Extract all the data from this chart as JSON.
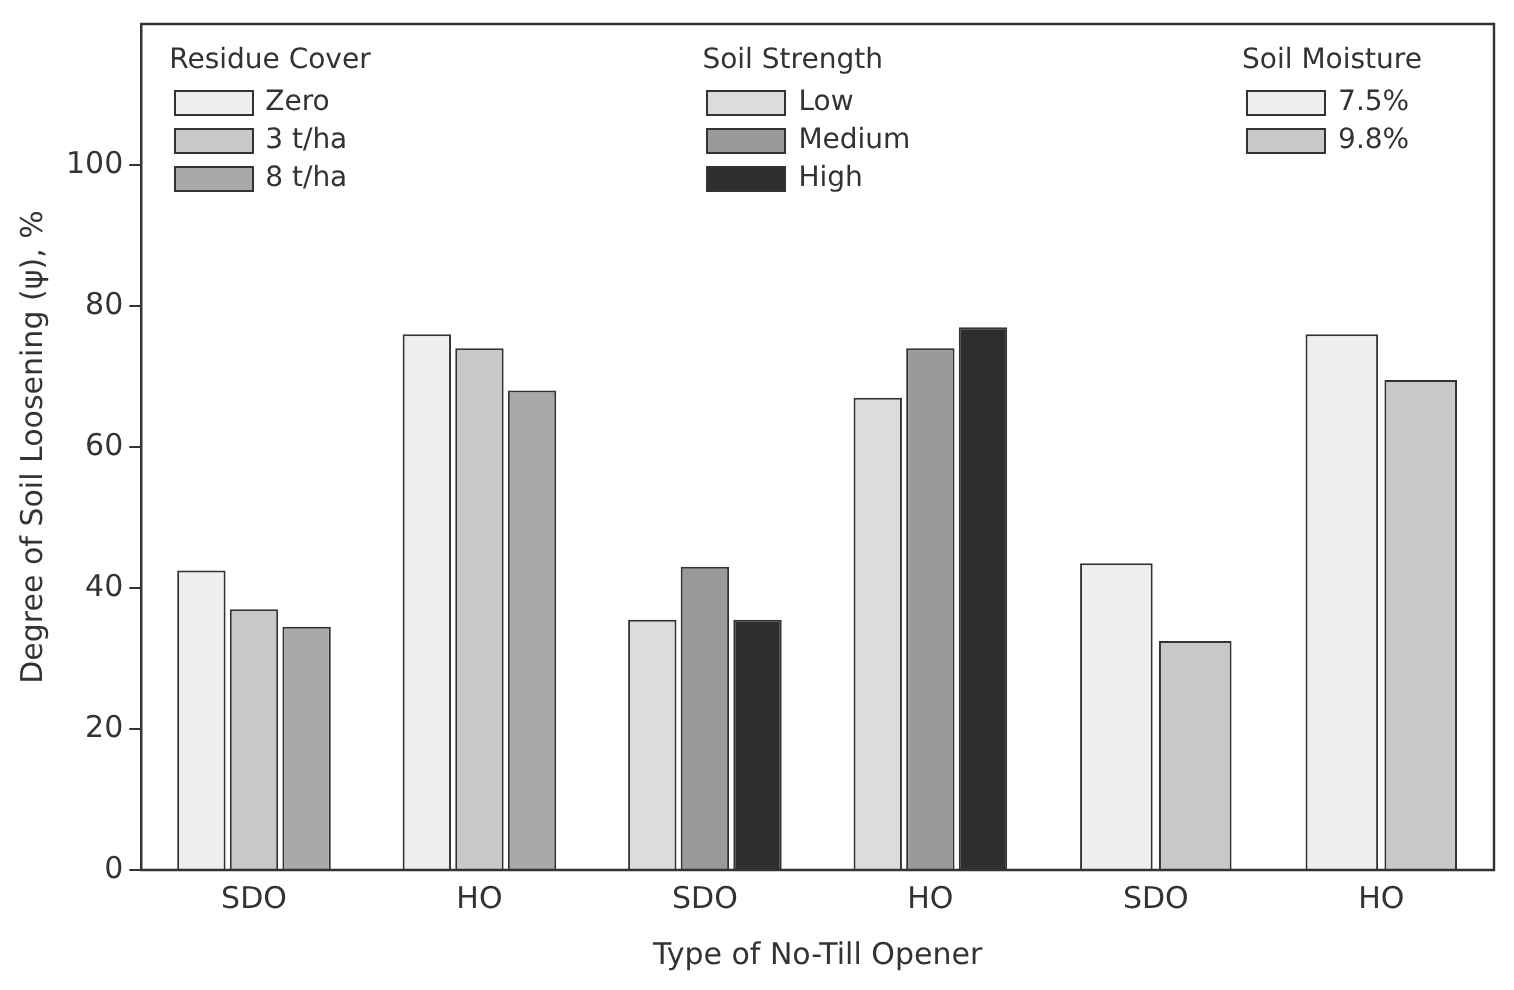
{
  "chart_data": {
    "type": "bar",
    "categories": [
      "SDO",
      "HO",
      "SDO",
      "HO",
      "SDO",
      "HO"
    ],
    "series": [
      {
        "name": "Zero",
        "color": "#eeeeee",
        "values": [
          42.5,
          76,
          null,
          null,
          null,
          null
        ]
      },
      {
        "name": "3 t/ha",
        "color": "#c8c8c8",
        "values": [
          37,
          74,
          null,
          null,
          null,
          null
        ]
      },
      {
        "name": "8 t/ha",
        "color": "#a9a9a9",
        "values": [
          34.5,
          68,
          null,
          null,
          null,
          null
        ]
      },
      {
        "name": "Low",
        "color": "#dcdcdc",
        "values": [
          null,
          null,
          35.5,
          67,
          null,
          null
        ]
      },
      {
        "name": "Medium",
        "color": "#9a9a9a",
        "values": [
          null,
          null,
          43,
          74,
          null,
          null
        ]
      },
      {
        "name": "High",
        "color": "#2e2e2e",
        "values": [
          null,
          null,
          35.5,
          77,
          null,
          null
        ]
      },
      {
        "name": "7.5%",
        "color": "#eeeeee",
        "values": [
          null,
          null,
          null,
          null,
          43.5,
          76
        ]
      },
      {
        "name": "9.8%",
        "color": "#c8c8c8",
        "values": [
          null,
          null,
          null,
          null,
          32.5,
          69.5
        ]
      }
    ],
    "annotations": [
      "Residue Cover",
      "Soil Strength",
      "Soil Moisture"
    ],
    "xlabel": "Type of No-Till Opener",
    "ylabel": "Degree of Soil Loosening (ψ), %",
    "ylim": [
      0,
      120
    ],
    "yticks": [
      0,
      20,
      40,
      60,
      80,
      100
    ],
    "legend": "top",
    "grid": false
  }
}
